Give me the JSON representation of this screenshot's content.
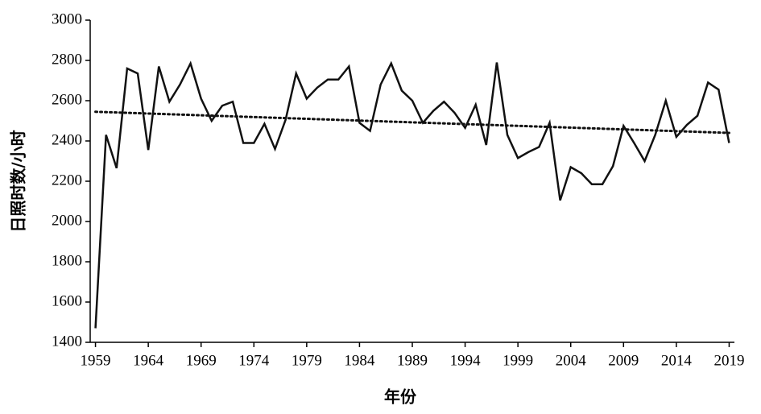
{
  "chart_data": {
    "type": "line",
    "x_label": "年份",
    "y_label": "日照时数/小时",
    "x": [
      1959,
      1960,
      1961,
      1962,
      1963,
      1964,
      1965,
      1966,
      1967,
      1968,
      1969,
      1970,
      1971,
      1972,
      1973,
      1974,
      1975,
      1976,
      1977,
      1978,
      1979,
      1980,
      1981,
      1982,
      1983,
      1984,
      1985,
      1986,
      1987,
      1988,
      1989,
      1990,
      1991,
      1992,
      1993,
      1994,
      1995,
      1996,
      1997,
      1998,
      1999,
      2000,
      2001,
      2002,
      2003,
      2004,
      2005,
      2006,
      2007,
      2008,
      2009,
      2010,
      2011,
      2012,
      2013,
      2014,
      2015,
      2016,
      2017,
      2018,
      2019
    ],
    "values": [
      1470,
      2430,
      2265,
      2760,
      2735,
      2355,
      2770,
      2595,
      2680,
      2785,
      2610,
      2500,
      2575,
      2595,
      2390,
      2390,
      2485,
      2360,
      2505,
      2735,
      2610,
      2665,
      2705,
      2705,
      2770,
      2490,
      2450,
      2680,
      2785,
      2650,
      2600,
      2490,
      2550,
      2595,
      2540,
      2465,
      2580,
      2380,
      2790,
      2430,
      2315,
      2345,
      2370,
      2490,
      2105,
      2270,
      2240,
      2185,
      2185,
      2275,
      2475,
      2390,
      2300,
      2430,
      2600,
      2420,
      2480,
      2525,
      2690,
      2655,
      2390
    ],
    "color": "#111111",
    "trendline": {
      "x": [
        1959,
        2019
      ],
      "values": [
        2545,
        2440
      ],
      "color": "#111111",
      "style": "dotted"
    },
    "xlim": [
      1958.5,
      2019.5
    ],
    "xticks": [
      1959,
      1964,
      1969,
      1974,
      1979,
      1984,
      1989,
      1994,
      1999,
      2004,
      2009,
      2014,
      2019
    ],
    "ylim": [
      1400,
      3000
    ],
    "yticks": [
      1400,
      1600,
      1800,
      2000,
      2200,
      2400,
      2600,
      2800,
      3000
    ],
    "grid": false
  }
}
